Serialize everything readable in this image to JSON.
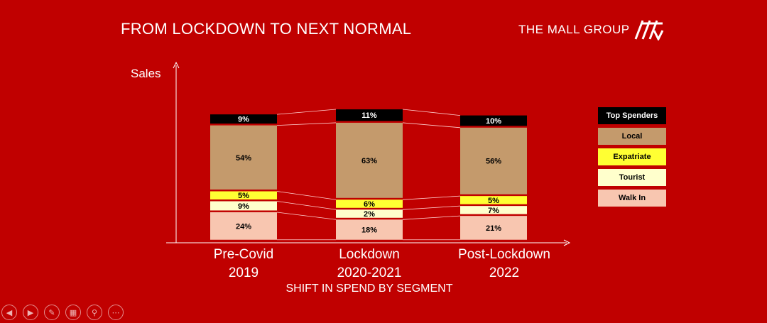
{
  "slide": {
    "title": "FROM LOCKDOWN TO NEXT NORMAL",
    "brand": "THE MALL GROUP",
    "subtitle": "SHIFT IN SPEND BY SEGMENT"
  },
  "colors": {
    "background": "#c00000",
    "Top Spenders": "#000000",
    "Local": "#c49a6c",
    "Expatriate": "#ffff33",
    "Tourist": "#ffffcc",
    "Walk In": "#f8c6b0",
    "connector": "#ffd0d0"
  },
  "legend": [
    "Top Spenders",
    "Local",
    "Expatriate",
    "Tourist",
    "Walk In"
  ],
  "controls": [
    {
      "name": "previous-slide-icon",
      "glyph": "◀"
    },
    {
      "name": "next-slide-icon",
      "glyph": "▶"
    },
    {
      "name": "pen-icon",
      "glyph": "✎"
    },
    {
      "name": "slides-grid-icon",
      "glyph": "▦"
    },
    {
      "name": "zoom-icon",
      "glyph": "⚲"
    },
    {
      "name": "more-options-icon",
      "glyph": "⋯"
    }
  ],
  "chart_data": {
    "type": "bar",
    "stacked": true,
    "ylabel": "Sales",
    "xlabel": "",
    "categories": [
      [
        "Pre-Covid",
        "2019"
      ],
      [
        "Lockdown",
        "2020-2021"
      ],
      [
        "Post-Lockdown",
        "2022"
      ]
    ],
    "series": [
      {
        "name": "Walk In",
        "values": [
          24,
          18,
          21
        ],
        "labels": [
          "24%",
          "18%",
          "21%"
        ]
      },
      {
        "name": "Tourist",
        "values": [
          9,
          2,
          7
        ],
        "labels": [
          "9%",
          "2%",
          "7%"
        ]
      },
      {
        "name": "Expatriate",
        "values": [
          5,
          6,
          5
        ],
        "labels": [
          "5%",
          "6%",
          "5%"
        ]
      },
      {
        "name": "Local",
        "values": [
          54,
          63,
          56
        ],
        "labels": [
          "54%",
          "63%",
          "56%"
        ]
      },
      {
        "name": "Top Spenders",
        "values": [
          9,
          11,
          10
        ],
        "labels": [
          "9%",
          "11%",
          "10%"
        ]
      }
    ],
    "legend_position": "right",
    "grid": false,
    "connector_lines": true
  }
}
